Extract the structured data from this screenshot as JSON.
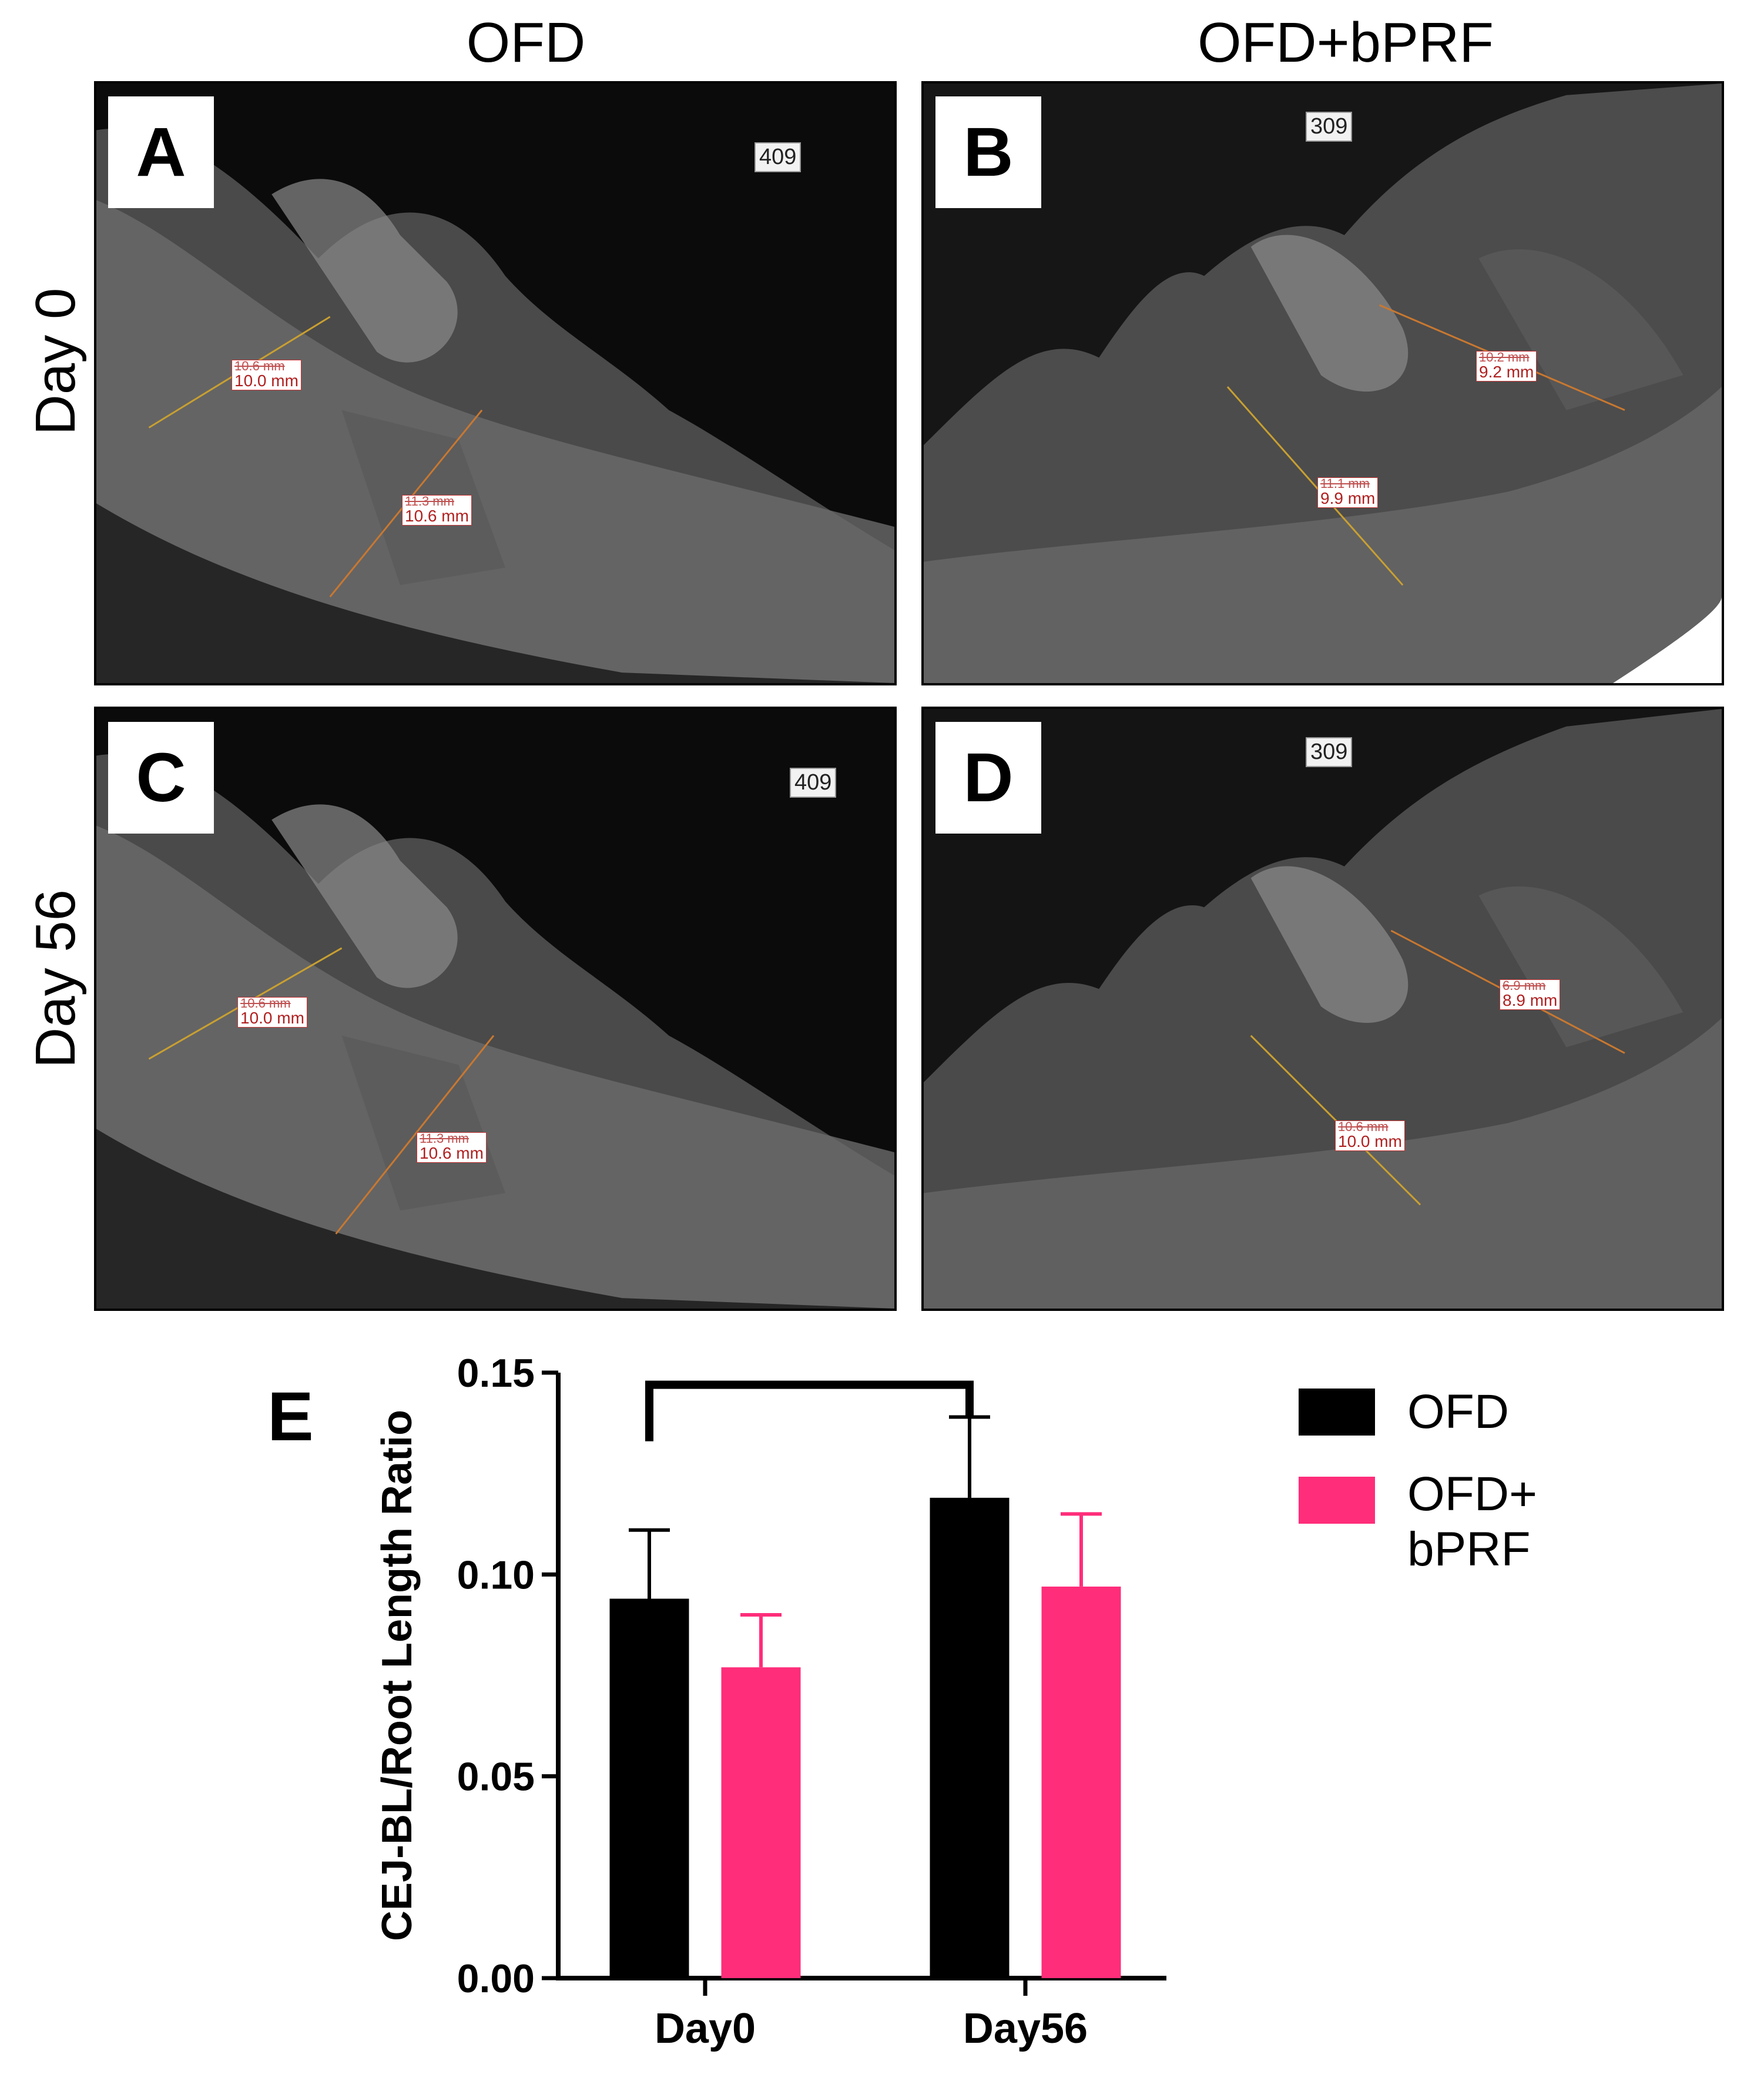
{
  "columns": [
    "OFD",
    "OFD+bPRF"
  ],
  "rows": [
    "Day 0",
    "Day 56"
  ],
  "panels": [
    {
      "label": "A",
      "id_tag": "409",
      "measurements": [
        {
          "old": "10.6 mm",
          "value": "10.0 mm"
        },
        {
          "old": "11.3 mm",
          "value": "10.6 mm"
        }
      ]
    },
    {
      "label": "B",
      "id_tag": "309",
      "measurements": [
        {
          "old": "10.2 mm",
          "value": "9.2 mm"
        },
        {
          "old": "11.1 mm",
          "value": "9.9 mm"
        }
      ]
    },
    {
      "label": "C",
      "id_tag": "409",
      "measurements": [
        {
          "old": "10.6 mm",
          "value": "10.0 mm"
        },
        {
          "old": "11.3 mm",
          "value": "10.6 mm"
        }
      ]
    },
    {
      "label": "D",
      "id_tag": "309",
      "measurements": [
        {
          "old": "6.9 mm",
          "value": "8.9 mm"
        },
        {
          "old": "10.6 mm",
          "value": "10.0 mm"
        }
      ]
    }
  ],
  "chart_data": {
    "type": "bar",
    "panel_label": "E",
    "categories": [
      "Day0",
      "Day56"
    ],
    "series": [
      {
        "name": "OFD",
        "color": "#000000",
        "values": [
          0.094,
          0.119
        ],
        "errors": [
          0.017,
          0.02
        ]
      },
      {
        "name": "OFD+ bPRF",
        "color": "#ff2d7a",
        "values": [
          0.077,
          0.097
        ],
        "errors": [
          0.013,
          0.018
        ]
      }
    ],
    "ylabel": "CEJ-BL/Root Length Ratio",
    "xlabel": "",
    "ylim": [
      0,
      0.15
    ],
    "yticks": [
      "0.00",
      "0.05",
      "0.10",
      "0.15"
    ],
    "significance_bracket": {
      "from": "OFD Day0",
      "to": "OFD Day56"
    },
    "legend": {
      "position": "right",
      "entries": [
        "OFD",
        "OFD+",
        "bPRF"
      ]
    },
    "grid": false
  }
}
